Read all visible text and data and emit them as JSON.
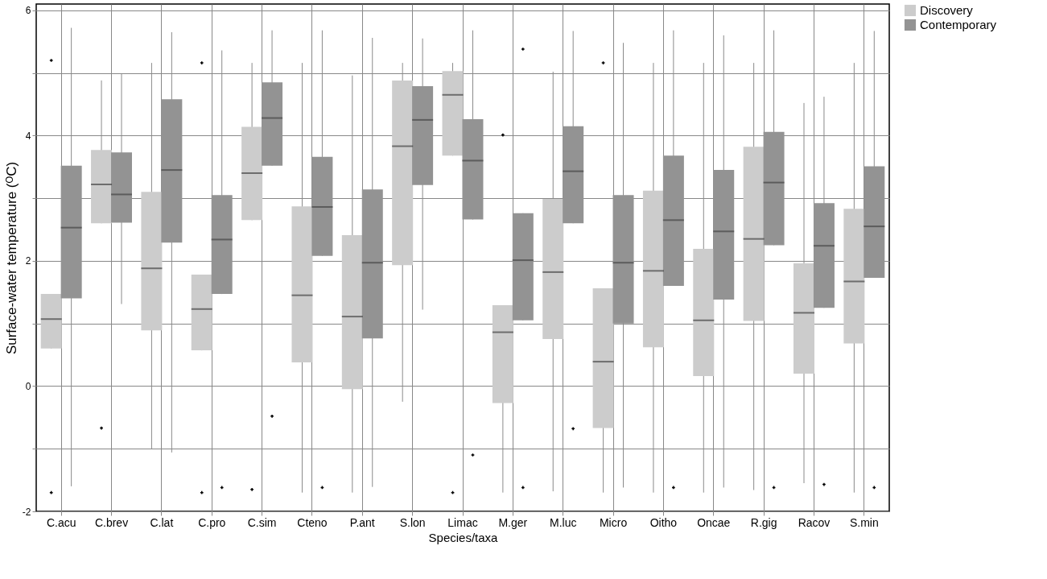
{
  "chart_data": {
    "type": "box",
    "xlabel": "Species/taxa",
    "ylabel": "Surface-water temperature (ᴼC)",
    "categories": [
      "C.acu",
      "C.brev",
      "C.lat",
      "C.pro",
      "C.sim",
      "Cteno",
      "P.ant",
      "S.lon",
      "Limac",
      "M.ger",
      "M.luc",
      "Micro",
      "Oitho",
      "Oncae",
      "R.gig",
      "Racov",
      "S.min"
    ],
    "ylim": [
      -2,
      6.1
    ],
    "yticks": [
      -2,
      {
        "value": -1,
        "label": null
      },
      0,
      {
        "value": 1,
        "label": null
      },
      2,
      {
        "value": 3,
        "label": null
      },
      4,
      {
        "value": 5,
        "label": null
      },
      6
    ],
    "grid": true,
    "legend": "right",
    "series": [
      {
        "name": "Discovery",
        "color": "#cccccc",
        "boxes": [
          {
            "low": 0.6,
            "q1": 0.6,
            "median": 1.07,
            "q3": 1.47,
            "high": 1.47,
            "outliers": [
              5.2,
              -1.7
            ]
          },
          {
            "low": 2.6,
            "q1": 2.6,
            "median": 3.22,
            "q3": 3.77,
            "high": 4.88,
            "outliers": [
              -0.67
            ]
          },
          {
            "low": -1.0,
            "q1": 0.89,
            "median": 1.88,
            "q3": 3.1,
            "high": 5.16
          },
          {
            "low": 0.57,
            "q1": 0.57,
            "median": 1.23,
            "q3": 1.78,
            "high": 1.78,
            "outliers": [
              5.16,
              -1.7
            ]
          },
          {
            "low": 2.65,
            "q1": 2.65,
            "median": 3.4,
            "q3": 4.14,
            "high": 5.16,
            "outliers": [
              -1.65
            ]
          },
          {
            "low": -1.7,
            "q1": 0.38,
            "median": 1.45,
            "q3": 2.87,
            "high": 5.16
          },
          {
            "low": -1.7,
            "q1": -0.05,
            "median": 1.11,
            "q3": 2.41,
            "high": 4.96
          },
          {
            "low": -0.25,
            "q1": 1.93,
            "median": 3.83,
            "q3": 4.88,
            "high": 5.16
          },
          {
            "low": 3.68,
            "q1": 3.68,
            "median": 4.65,
            "q3": 5.03,
            "high": 5.16,
            "outliers": [
              -1.7
            ]
          },
          {
            "low": -1.7,
            "q1": -0.27,
            "median": 0.86,
            "q3": 1.29,
            "high": 1.29,
            "outliers": [
              4.01
            ]
          },
          {
            "low": -1.68,
            "q1": 0.75,
            "median": 1.82,
            "q3": 2.99,
            "high": 5.02
          },
          {
            "low": -1.7,
            "q1": -0.67,
            "median": 0.39,
            "q3": 1.56,
            "high": 1.56,
            "outliers": [
              5.16
            ]
          },
          {
            "low": -1.7,
            "q1": 0.62,
            "median": 1.84,
            "q3": 3.12,
            "high": 5.16
          },
          {
            "low": -1.7,
            "q1": 0.16,
            "median": 1.05,
            "q3": 2.19,
            "high": 5.16
          },
          {
            "low": -1.66,
            "q1": 1.04,
            "median": 2.35,
            "q3": 3.82,
            "high": 5.16
          },
          {
            "low": -1.55,
            "q1": 0.2,
            "median": 1.17,
            "q3": 1.96,
            "high": 4.52
          },
          {
            "low": -1.7,
            "q1": 0.68,
            "median": 1.67,
            "q3": 2.83,
            "high": 5.16
          }
        ]
      },
      {
        "name": "Contemporary",
        "color": "#939393",
        "boxes": [
          {
            "low": -1.6,
            "q1": 1.4,
            "median": 2.53,
            "q3": 3.52,
            "high": 5.72
          },
          {
            "low": 1.31,
            "q1": 2.61,
            "median": 3.06,
            "q3": 3.73,
            "high": 4.99
          },
          {
            "low": -1.06,
            "q1": 2.29,
            "median": 3.45,
            "q3": 4.58,
            "high": 5.65
          },
          {
            "low": 1.47,
            "q1": 1.47,
            "median": 2.34,
            "q3": 3.05,
            "high": 5.36,
            "outliers": [
              -1.62
            ]
          },
          {
            "low": 3.52,
            "q1": 3.52,
            "median": 4.28,
            "q3": 4.85,
            "high": 5.68,
            "outliers": [
              -0.48
            ]
          },
          {
            "low": 2.08,
            "q1": 2.08,
            "median": 2.86,
            "q3": 3.66,
            "high": 5.68,
            "outliers": [
              -1.62
            ]
          },
          {
            "low": -1.61,
            "q1": 0.76,
            "median": 1.97,
            "q3": 3.14,
            "high": 5.56
          },
          {
            "low": 1.22,
            "q1": 3.21,
            "median": 4.25,
            "q3": 4.79,
            "high": 5.55
          },
          {
            "low": 2.66,
            "q1": 2.66,
            "median": 3.6,
            "q3": 4.26,
            "high": 5.68,
            "outliers": [
              -1.1
            ]
          },
          {
            "low": 1.05,
            "q1": 1.05,
            "median": 2.01,
            "q3": 2.76,
            "high": 2.76,
            "outliers": [
              5.38,
              -1.62
            ]
          },
          {
            "low": 2.6,
            "q1": 2.6,
            "median": 3.43,
            "q3": 4.15,
            "high": 5.67,
            "outliers": [
              -0.68
            ]
          },
          {
            "low": -1.62,
            "q1": 1.0,
            "median": 1.97,
            "q3": 3.05,
            "high": 5.48
          },
          {
            "low": 1.6,
            "q1": 1.6,
            "median": 2.65,
            "q3": 3.68,
            "high": 5.68,
            "outliers": [
              -1.62
            ]
          },
          {
            "low": -1.62,
            "q1": 1.38,
            "median": 2.47,
            "q3": 3.45,
            "high": 5.6
          },
          {
            "low": 2.25,
            "q1": 2.25,
            "median": 3.25,
            "q3": 4.06,
            "high": 5.68,
            "outliers": [
              -1.62
            ]
          },
          {
            "low": 1.25,
            "q1": 1.25,
            "median": 2.24,
            "q3": 2.92,
            "high": 4.62,
            "outliers": [
              -1.57
            ]
          },
          {
            "low": 1.73,
            "q1": 1.73,
            "median": 2.55,
            "q3": 3.51,
            "high": 5.67,
            "outliers": [
              -1.62
            ]
          }
        ]
      }
    ]
  }
}
